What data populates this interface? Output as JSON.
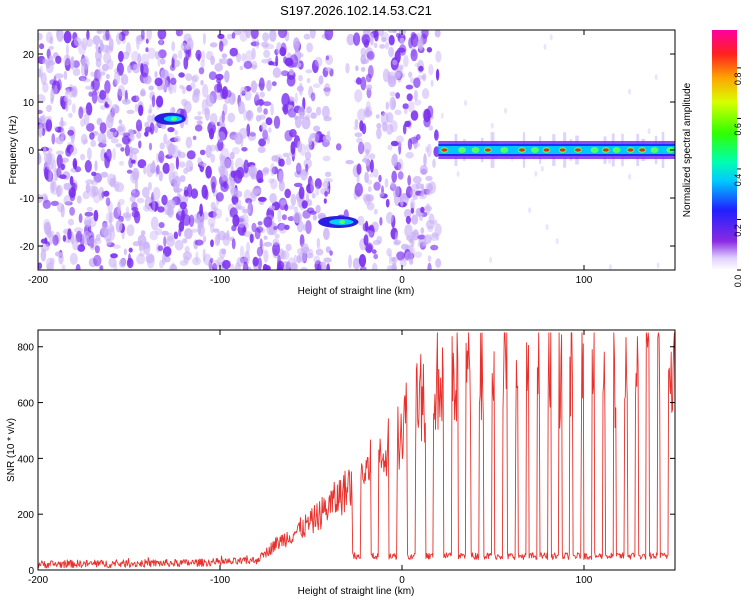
{
  "title": "S197.2026.102.14.53.C21",
  "colors": {
    "snr_line": "#e8302c",
    "blob_purple": "#7b2ff0",
    "blob_light": "#c9b0f6",
    "tone_core": "#e0301e"
  },
  "chart_data": [
    {
      "type": "heatmap",
      "name": "spectrogram",
      "xlabel": "Height of straight line (km)",
      "ylabel": "Frequency (Hz)",
      "xlim": [
        -200,
        150
      ],
      "ylim": [
        -25,
        25
      ],
      "xticks": [
        -200,
        -100,
        0,
        100
      ],
      "xtick_labels": [
        "-200",
        "-100",
        "0",
        "100"
      ],
      "yticks": [
        20,
        10,
        0,
        -10,
        -20
      ],
      "ytick_labels": [
        "20",
        "10",
        "0",
        "-10",
        "-20"
      ],
      "noise_region_km": [
        -200,
        20
      ],
      "blank_gap_km": [
        -40,
        -25
      ],
      "tone_region_km": [
        20,
        150
      ],
      "tone_frequency_hz": 0,
      "features": [
        {
          "label": "burst near 7 Hz",
          "x_km": [
            -135,
            -120
          ],
          "freq_hz": 6.5
        },
        {
          "label": "burst near -15 Hz",
          "x_km": [
            -45,
            -25
          ],
          "freq_hz": -15
        }
      ],
      "colorbar": {
        "label": "Normalized spectral amplitude",
        "range": [
          0.0,
          0.95
        ],
        "ticks": [
          0.0,
          0.2,
          0.4,
          0.6,
          0.8
        ],
        "tick_labels": [
          "0.0",
          "0.2",
          "0.4",
          "0.6",
          "0.8"
        ]
      }
    },
    {
      "type": "line",
      "name": "snr",
      "xlabel": "Height of straight line (km)",
      "ylabel": "SNR (10 * v/v)",
      "xlim": [
        -200,
        150
      ],
      "ylim": [
        0,
        860
      ],
      "xticks": [
        -200,
        -100,
        0,
        100
      ],
      "xtick_labels": [
        "-200",
        "-100",
        "0",
        "100"
      ],
      "yticks": [
        0,
        200,
        400,
        600,
        800
      ],
      "ytick_labels": [
        "0",
        "200",
        "400",
        "600",
        "800"
      ],
      "series": [
        {
          "name": "SNR",
          "x": [
            -200,
            -180,
            -160,
            -140,
            -120,
            -100,
            -90,
            -80,
            -75,
            -70,
            -65,
            -60,
            -55,
            -50,
            -45,
            -40,
            -35,
            -30,
            -25,
            -20,
            -15,
            -10,
            -5,
            0,
            5,
            10,
            15,
            20,
            25,
            30,
            40,
            50,
            60,
            70,
            80,
            90,
            100,
            110,
            120,
            130,
            140,
            145
          ],
          "baseline": [
            20,
            22,
            22,
            24,
            25,
            28,
            30,
            35,
            60,
            90,
            110,
            130,
            150,
            170,
            200,
            230,
            260,
            290,
            320,
            350,
            380,
            400,
            450,
            520,
            580,
            620,
            650,
            680,
            700,
            710,
            720,
            730,
            720,
            700,
            710,
            700,
            690,
            700,
            690,
            700,
            720,
            740
          ],
          "dropout_level": 50,
          "dropouts_x": [
            -25,
            -15,
            -5,
            5,
            15,
            25,
            33,
            40,
            47,
            53,
            60,
            66,
            72,
            78,
            84,
            90,
            96,
            102,
            108,
            114,
            120,
            126,
            132,
            138,
            144
          ],
          "max_value": 850
        }
      ]
    }
  ]
}
